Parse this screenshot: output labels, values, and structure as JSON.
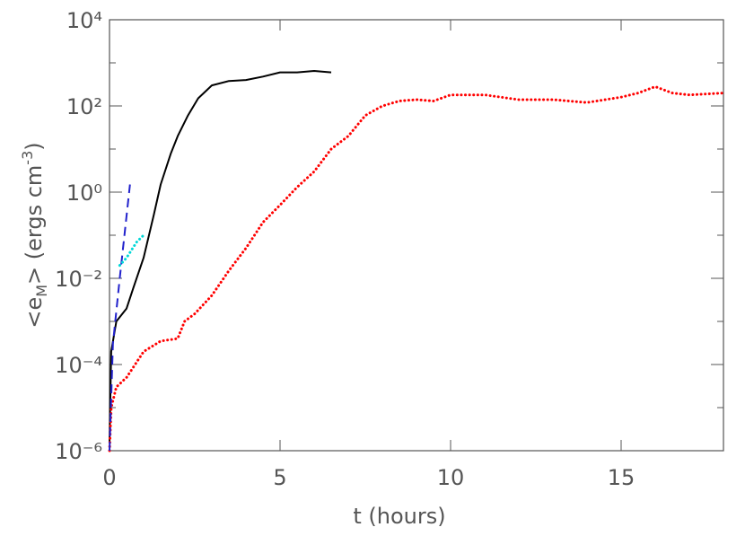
{
  "chart_data": {
    "type": "line",
    "xlabel": "t (hours)",
    "ylabel": [
      "<e",
      "M",
      "> (ergs cm",
      "-3",
      ")"
    ],
    "xlim": [
      0,
      18
    ],
    "xticks": [
      0,
      5,
      10,
      15
    ],
    "ylim": [
      1e-06,
      10000
    ],
    "ylog": true,
    "yticks": [
      {
        "value": 1e-06,
        "label": "10⁻⁶"
      },
      {
        "value": 0.0001,
        "label": "10⁻⁴"
      },
      {
        "value": 0.01,
        "label": "10⁻²"
      },
      {
        "value": 1,
        "label": "10⁰"
      },
      {
        "value": 100,
        "label": "10²"
      },
      {
        "value": 10000,
        "label": "10⁴"
      }
    ],
    "yminor_ticks": [
      1e-05,
      0.001,
      0.1,
      10,
      1000
    ],
    "series": [
      {
        "color": "#000000",
        "style": "solid",
        "x": [
          0,
          0.05,
          0.2,
          0.5,
          0.7,
          1.0,
          1.3,
          1.5,
          1.8,
          2.0,
          2.3,
          2.6,
          3.0,
          3.5,
          4.0,
          4.5,
          5.0,
          5.5,
          6.0,
          6.5
        ],
        "values": [
          1.5e-06,
          0.0002,
          0.001,
          0.002,
          0.006,
          0.03,
          0.3,
          1.5,
          8,
          20,
          60,
          150,
          300,
          380,
          400,
          480,
          600,
          600,
          650,
          600
        ]
      },
      {
        "color": "#ff0000",
        "style": "dotted",
        "x": [
          0,
          0.05,
          0.2,
          0.5,
          1.0,
          1.5,
          2.0,
          2.2,
          2.5,
          3.0,
          3.5,
          4.0,
          4.5,
          5.0,
          5.5,
          6.0,
          6.5,
          7.0,
          7.5,
          8.0,
          8.5,
          9.0,
          9.5,
          10,
          11,
          12,
          13,
          14,
          15,
          15.5,
          16,
          16.5,
          17,
          18
        ],
        "values": [
          1e-06,
          1e-05,
          3e-05,
          5e-05,
          0.0002,
          0.00035,
          0.0004,
          0.001,
          0.0015,
          0.004,
          0.015,
          0.05,
          0.2,
          0.5,
          1.3,
          3,
          10,
          20,
          60,
          100,
          130,
          140,
          130,
          180,
          180,
          140,
          140,
          120,
          160,
          200,
          280,
          200,
          180,
          200
        ]
      },
      {
        "color": "#2222cc",
        "style": "dashed",
        "x": [
          0,
          0.1,
          0.3,
          0.6
        ],
        "values": [
          1e-06,
          0.0003,
          0.01,
          1.5
        ]
      },
      {
        "color": "#00d8d8",
        "style": "dotted",
        "x": [
          0.3,
          0.5,
          0.8,
          1.0
        ],
        "values": [
          0.02,
          0.03,
          0.07,
          0.1
        ]
      }
    ]
  }
}
